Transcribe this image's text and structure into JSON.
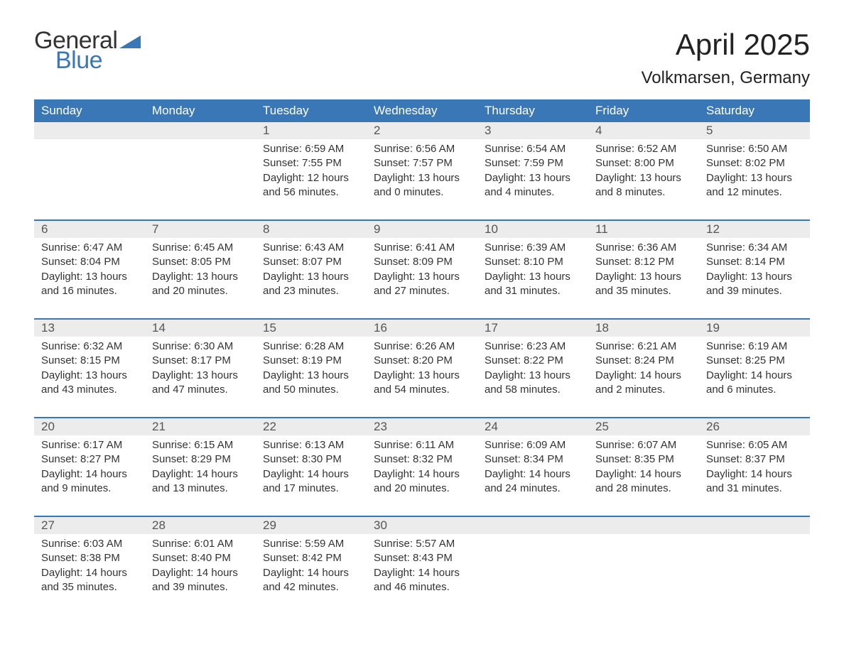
{
  "brand": {
    "word1": "General",
    "word2": "Blue",
    "word1_color": "#333333",
    "word2_color": "#3a77b7",
    "triangle_color": "#3a77b7"
  },
  "header": {
    "title": "April 2025",
    "location": "Volkmarsen, Germany"
  },
  "colors": {
    "header_bg": "#3a77b7",
    "header_fg": "#ffffff",
    "daynum_bg": "#ececec",
    "daynum_fg": "#555555",
    "body_bg": "#ffffff",
    "body_fg": "#333333",
    "week_rule": "#3a77b7"
  },
  "typography": {
    "title_fontsize_pt": 32,
    "location_fontsize_pt": 18,
    "dayheader_fontsize_pt": 13,
    "daynum_fontsize_pt": 13,
    "body_fontsize_pt": 11,
    "font_family": "Arial"
  },
  "calendar": {
    "day_headers": [
      "Sunday",
      "Monday",
      "Tuesday",
      "Wednesday",
      "Thursday",
      "Friday",
      "Saturday"
    ],
    "weeks": [
      [
        null,
        null,
        {
          "n": "1",
          "sunrise": "Sunrise: 6:59 AM",
          "sunset": "Sunset: 7:55 PM",
          "daylight": "Daylight: 12 hours and 56 minutes."
        },
        {
          "n": "2",
          "sunrise": "Sunrise: 6:56 AM",
          "sunset": "Sunset: 7:57 PM",
          "daylight": "Daylight: 13 hours and 0 minutes."
        },
        {
          "n": "3",
          "sunrise": "Sunrise: 6:54 AM",
          "sunset": "Sunset: 7:59 PM",
          "daylight": "Daylight: 13 hours and 4 minutes."
        },
        {
          "n": "4",
          "sunrise": "Sunrise: 6:52 AM",
          "sunset": "Sunset: 8:00 PM",
          "daylight": "Daylight: 13 hours and 8 minutes."
        },
        {
          "n": "5",
          "sunrise": "Sunrise: 6:50 AM",
          "sunset": "Sunset: 8:02 PM",
          "daylight": "Daylight: 13 hours and 12 minutes."
        }
      ],
      [
        {
          "n": "6",
          "sunrise": "Sunrise: 6:47 AM",
          "sunset": "Sunset: 8:04 PM",
          "daylight": "Daylight: 13 hours and 16 minutes."
        },
        {
          "n": "7",
          "sunrise": "Sunrise: 6:45 AM",
          "sunset": "Sunset: 8:05 PM",
          "daylight": "Daylight: 13 hours and 20 minutes."
        },
        {
          "n": "8",
          "sunrise": "Sunrise: 6:43 AM",
          "sunset": "Sunset: 8:07 PM",
          "daylight": "Daylight: 13 hours and 23 minutes."
        },
        {
          "n": "9",
          "sunrise": "Sunrise: 6:41 AM",
          "sunset": "Sunset: 8:09 PM",
          "daylight": "Daylight: 13 hours and 27 minutes."
        },
        {
          "n": "10",
          "sunrise": "Sunrise: 6:39 AM",
          "sunset": "Sunset: 8:10 PM",
          "daylight": "Daylight: 13 hours and 31 minutes."
        },
        {
          "n": "11",
          "sunrise": "Sunrise: 6:36 AM",
          "sunset": "Sunset: 8:12 PM",
          "daylight": "Daylight: 13 hours and 35 minutes."
        },
        {
          "n": "12",
          "sunrise": "Sunrise: 6:34 AM",
          "sunset": "Sunset: 8:14 PM",
          "daylight": "Daylight: 13 hours and 39 minutes."
        }
      ],
      [
        {
          "n": "13",
          "sunrise": "Sunrise: 6:32 AM",
          "sunset": "Sunset: 8:15 PM",
          "daylight": "Daylight: 13 hours and 43 minutes."
        },
        {
          "n": "14",
          "sunrise": "Sunrise: 6:30 AM",
          "sunset": "Sunset: 8:17 PM",
          "daylight": "Daylight: 13 hours and 47 minutes."
        },
        {
          "n": "15",
          "sunrise": "Sunrise: 6:28 AM",
          "sunset": "Sunset: 8:19 PM",
          "daylight": "Daylight: 13 hours and 50 minutes."
        },
        {
          "n": "16",
          "sunrise": "Sunrise: 6:26 AM",
          "sunset": "Sunset: 8:20 PM",
          "daylight": "Daylight: 13 hours and 54 minutes."
        },
        {
          "n": "17",
          "sunrise": "Sunrise: 6:23 AM",
          "sunset": "Sunset: 8:22 PM",
          "daylight": "Daylight: 13 hours and 58 minutes."
        },
        {
          "n": "18",
          "sunrise": "Sunrise: 6:21 AM",
          "sunset": "Sunset: 8:24 PM",
          "daylight": "Daylight: 14 hours and 2 minutes."
        },
        {
          "n": "19",
          "sunrise": "Sunrise: 6:19 AM",
          "sunset": "Sunset: 8:25 PM",
          "daylight": "Daylight: 14 hours and 6 minutes."
        }
      ],
      [
        {
          "n": "20",
          "sunrise": "Sunrise: 6:17 AM",
          "sunset": "Sunset: 8:27 PM",
          "daylight": "Daylight: 14 hours and 9 minutes."
        },
        {
          "n": "21",
          "sunrise": "Sunrise: 6:15 AM",
          "sunset": "Sunset: 8:29 PM",
          "daylight": "Daylight: 14 hours and 13 minutes."
        },
        {
          "n": "22",
          "sunrise": "Sunrise: 6:13 AM",
          "sunset": "Sunset: 8:30 PM",
          "daylight": "Daylight: 14 hours and 17 minutes."
        },
        {
          "n": "23",
          "sunrise": "Sunrise: 6:11 AM",
          "sunset": "Sunset: 8:32 PM",
          "daylight": "Daylight: 14 hours and 20 minutes."
        },
        {
          "n": "24",
          "sunrise": "Sunrise: 6:09 AM",
          "sunset": "Sunset: 8:34 PM",
          "daylight": "Daylight: 14 hours and 24 minutes."
        },
        {
          "n": "25",
          "sunrise": "Sunrise: 6:07 AM",
          "sunset": "Sunset: 8:35 PM",
          "daylight": "Daylight: 14 hours and 28 minutes."
        },
        {
          "n": "26",
          "sunrise": "Sunrise: 6:05 AM",
          "sunset": "Sunset: 8:37 PM",
          "daylight": "Daylight: 14 hours and 31 minutes."
        }
      ],
      [
        {
          "n": "27",
          "sunrise": "Sunrise: 6:03 AM",
          "sunset": "Sunset: 8:38 PM",
          "daylight": "Daylight: 14 hours and 35 minutes."
        },
        {
          "n": "28",
          "sunrise": "Sunrise: 6:01 AM",
          "sunset": "Sunset: 8:40 PM",
          "daylight": "Daylight: 14 hours and 39 minutes."
        },
        {
          "n": "29",
          "sunrise": "Sunrise: 5:59 AM",
          "sunset": "Sunset: 8:42 PM",
          "daylight": "Daylight: 14 hours and 42 minutes."
        },
        {
          "n": "30",
          "sunrise": "Sunrise: 5:57 AM",
          "sunset": "Sunset: 8:43 PM",
          "daylight": "Daylight: 14 hours and 46 minutes."
        },
        null,
        null,
        null
      ]
    ]
  }
}
